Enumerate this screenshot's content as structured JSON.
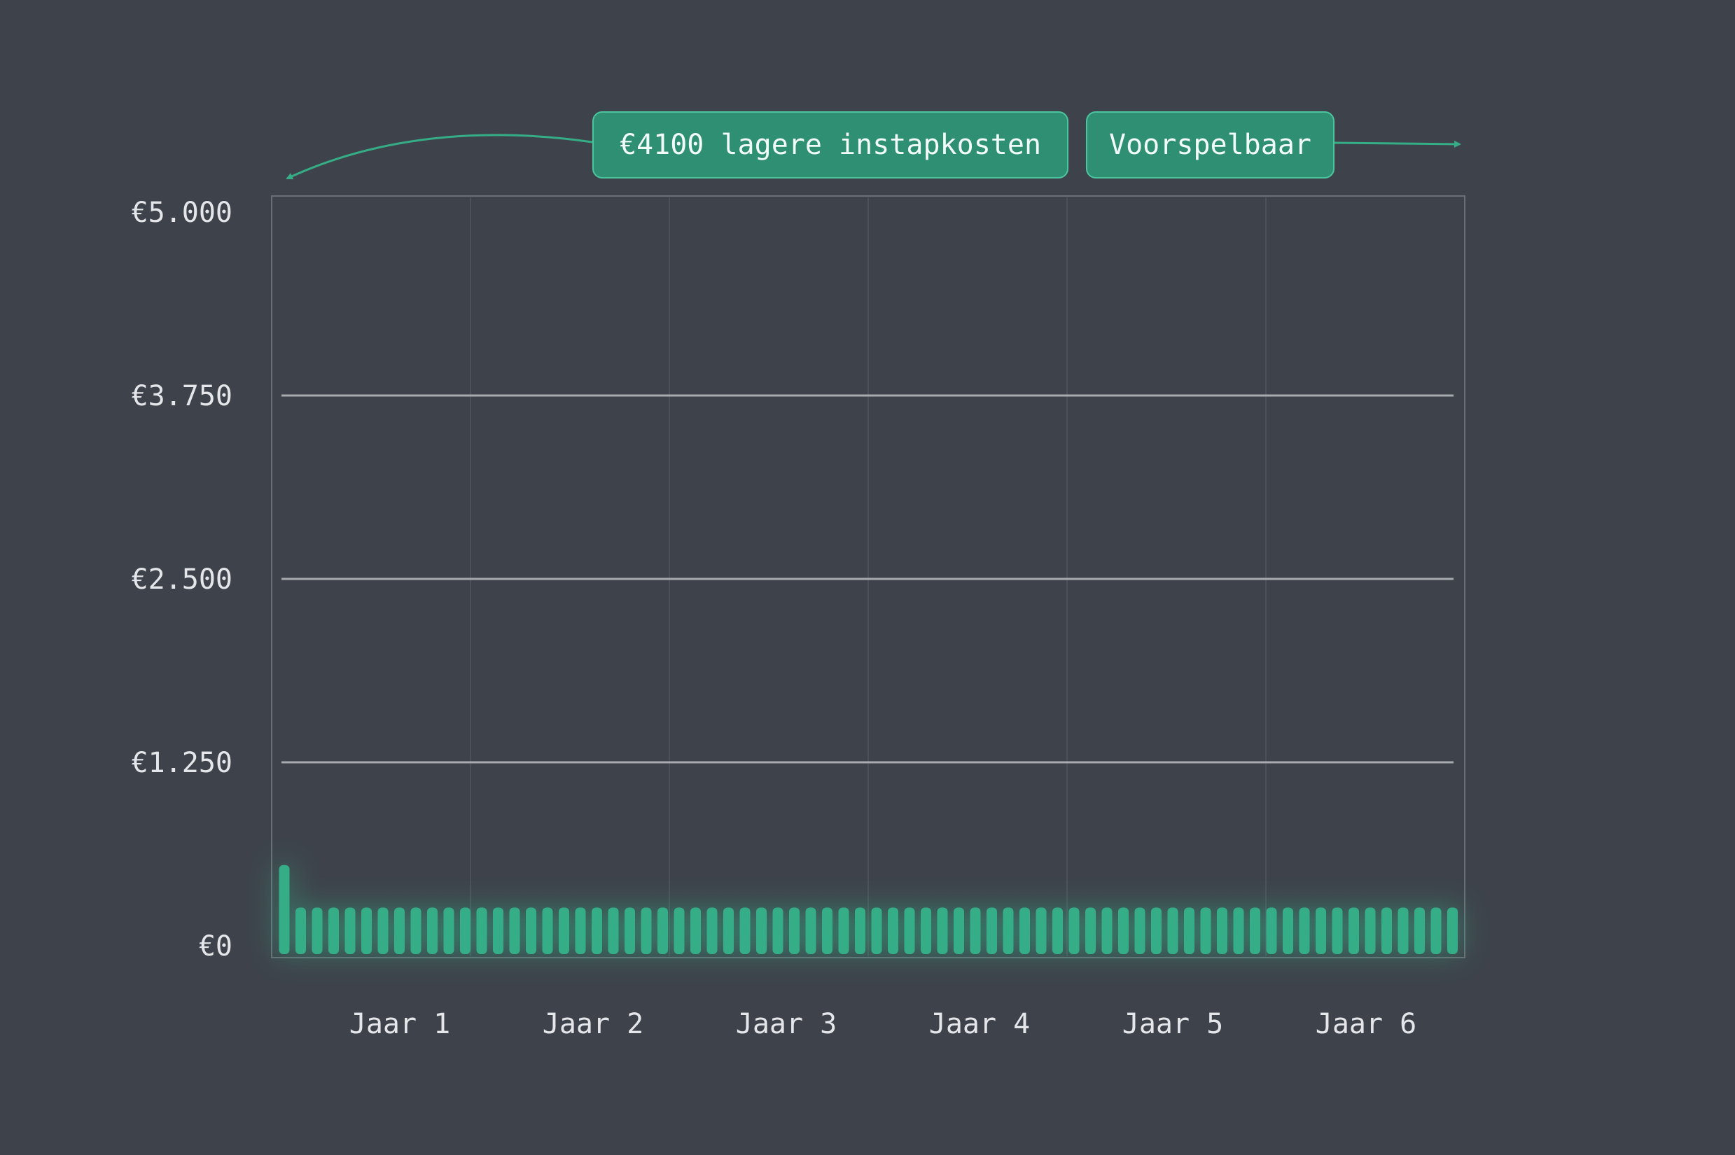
{
  "chart_data": {
    "type": "bar",
    "title": "",
    "xlabel": "",
    "ylabel": "",
    "ylim": [
      0,
      5000
    ],
    "yticks": [
      "€0",
      "€1.250",
      "€2.500",
      "€3.750",
      "€5.000"
    ],
    "ytick_values": [
      0,
      1250,
      2500,
      3750,
      5000
    ],
    "xticks": [
      "Jaar 1",
      "Jaar 2",
      "Jaar 3",
      "Jaar 4",
      "Jaar 5",
      "Jaar 6"
    ],
    "grid": true,
    "months": 72,
    "values": [
      550,
      260,
      260,
      260,
      260,
      260,
      260,
      260,
      260,
      260,
      260,
      260,
      260,
      260,
      260,
      260,
      260,
      260,
      260,
      260,
      260,
      260,
      260,
      260,
      260,
      260,
      260,
      260,
      260,
      260,
      260,
      260,
      260,
      260,
      260,
      260,
      260,
      260,
      260,
      260,
      260,
      260,
      260,
      260,
      260,
      260,
      260,
      260,
      260,
      260,
      260,
      260,
      260,
      260,
      260,
      260,
      260,
      260,
      260,
      260,
      260,
      260,
      260,
      260,
      260,
      260,
      260,
      260,
      260,
      260,
      260,
      260
    ],
    "annotations": [
      {
        "text": "€4100 lagere instapkosten",
        "arrow": "left"
      },
      {
        "text": "Voorspelbaar",
        "arrow": "right"
      }
    ],
    "colors": {
      "background": "#3e434b",
      "bar": "#35ad86",
      "accent": "#2f8f72",
      "gridline": "#a7abb0",
      "text": "#e4e6ea"
    }
  }
}
